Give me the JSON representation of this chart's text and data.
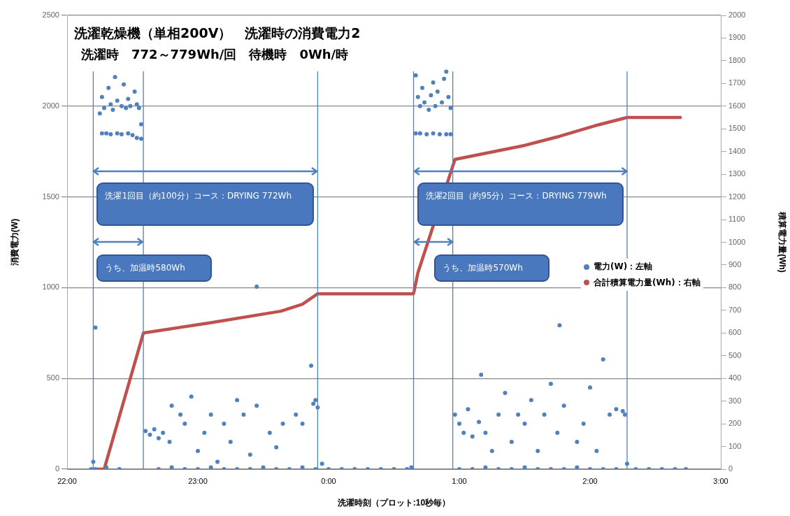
{
  "chart_data": {
    "type": "scatter",
    "title": "洗濯乾燥機（単相200V）　洗濯時の消費電力2",
    "subtitle": "洗濯時　772～779Wh/回　待機時　0Wh/時",
    "xlabel": "洗濯時刻（プロット:10秒毎）",
    "ylabel": "消費電力(W)",
    "y2label": "積算電力量(Wh)",
    "xlim": [
      "2000-01-01T22:00",
      "2000-01-02T03:00"
    ],
    "xticks": [
      {
        "value": "2000-01-01T22:00",
        "label": "22:00"
      },
      {
        "value": "2000-01-01T23:00",
        "label": "23:00"
      },
      {
        "value": "2000-01-02T00:00",
        "label": "0:00"
      },
      {
        "value": "2000-01-02T01:00",
        "label": "1:00"
      },
      {
        "value": "2000-01-02T02:00",
        "label": "2:00"
      },
      {
        "value": "2000-01-02T03:00",
        "label": "3:00"
      }
    ],
    "ylim": [
      0,
      2500
    ],
    "yticks": [
      0,
      500,
      1000,
      1500,
      2000,
      2500
    ],
    "y2lim": [
      0,
      2000
    ],
    "y2ticks": [
      0,
      100,
      200,
      300,
      400,
      500,
      600,
      700,
      800,
      900,
      1000,
      1100,
      1200,
      1300,
      1400,
      1500,
      1600,
      1700,
      1800,
      1900,
      2000
    ],
    "grid": "y",
    "legend": "right",
    "series": [
      {
        "type": "scatter",
        "name": "電力(W)：左軸",
        "color": "#4f81bd",
        "marker": "circle",
        "x": [
          "2000-01-01T22:11",
          "2000-01-01T22:12",
          "2000-01-01T22:13",
          "2000-01-01T22:13",
          "2000-01-01T22:18",
          "2000-01-01T22:24",
          "2000-01-01T22:16",
          "2000-01-01T22:18",
          "2000-01-01T22:20",
          "2000-01-01T22:23",
          "2000-01-01T22:25",
          "2000-01-01T22:28",
          "2000-01-01T22:30",
          "2000-01-01T22:32",
          "2000-01-01T22:34",
          "2000-01-01T22:15",
          "2000-01-01T22:16",
          "2000-01-01T22:17",
          "2000-01-01T22:19",
          "2000-01-01T22:20",
          "2000-01-01T22:21",
          "2000-01-01T22:22",
          "2000-01-01T22:23",
          "2000-01-01T22:25",
          "2000-01-01T22:26",
          "2000-01-01T22:27",
          "2000-01-01T22:28",
          "2000-01-01T22:29",
          "2000-01-01T22:31",
          "2000-01-01T22:32",
          "2000-01-01T22:33",
          "2000-01-01T22:34",
          "2000-01-01T22:36",
          "2000-01-01T22:38",
          "2000-01-01T22:40",
          "2000-01-01T22:42",
          "2000-01-01T22:44",
          "2000-01-01T22:47",
          "2000-01-01T22:48",
          "2000-01-01T22:52",
          "2000-01-01T22:54",
          "2000-01-01T22:57",
          "2000-01-01T23:00",
          "2000-01-01T23:03",
          "2000-01-01T23:06",
          "2000-01-01T23:09",
          "2000-01-01T23:12",
          "2000-01-01T23:15",
          "2000-01-01T23:18",
          "2000-01-01T23:21",
          "2000-01-01T23:24",
          "2000-01-01T23:27",
          "2000-01-01T23:27",
          "2000-01-01T23:33",
          "2000-01-01T23:36",
          "2000-01-01T23:39",
          "2000-01-01T23:45",
          "2000-01-01T23:48",
          "2000-01-01T23:52",
          "2000-01-01T23:53",
          "2000-01-01T23:54",
          "2000-01-01T23:55",
          "2000-01-01T22:42",
          "2000-01-01T22:48",
          "2000-01-01T22:54",
          "2000-01-01T23:00",
          "2000-01-01T23:06",
          "2000-01-01T23:12",
          "2000-01-01T23:18",
          "2000-01-01T23:24",
          "2000-01-01T23:30",
          "2000-01-01T23:36",
          "2000-01-01T23:42",
          "2000-01-01T23:48",
          "2000-01-01T23:54",
          "2000-01-01T23:57",
          "2000-01-02T00:00",
          "2000-01-02T00:06",
          "2000-01-02T00:12",
          "2000-01-02T00:18",
          "2000-01-02T00:24",
          "2000-01-02T00:30",
          "2000-01-02T00:36",
          "2000-01-02T00:38",
          "2000-01-02T00:40",
          "2000-01-02T00:42",
          "2000-01-02T00:45",
          "2000-01-02T00:48",
          "2000-01-02T00:51",
          "2000-01-02T00:54",
          "2000-01-02T00:56",
          "2000-01-02T00:40",
          "2000-01-02T00:41",
          "2000-01-02T00:42",
          "2000-01-02T00:43",
          "2000-01-02T00:44",
          "2000-01-02T00:46",
          "2000-01-02T00:47",
          "2000-01-02T00:48",
          "2000-01-02T00:49",
          "2000-01-02T00:50",
          "2000-01-02T00:52",
          "2000-01-02T00:53",
          "2000-01-02T00:54",
          "2000-01-02T00:55",
          "2000-01-02T00:56",
          "2000-01-02T00:58",
          "2000-01-02T01:00",
          "2000-01-02T01:02",
          "2000-01-02T01:04",
          "2000-01-02T01:06",
          "2000-01-02T01:09",
          "2000-01-02T01:10",
          "2000-01-02T01:12",
          "2000-01-02T01:15",
          "2000-01-02T01:18",
          "2000-01-02T01:21",
          "2000-01-02T01:24",
          "2000-01-02T01:27",
          "2000-01-02T01:30",
          "2000-01-02T01:33",
          "2000-01-02T01:36",
          "2000-01-02T01:39",
          "2000-01-02T01:42",
          "2000-01-02T01:45",
          "2000-01-02T01:46",
          "2000-01-02T01:48",
          "2000-01-02T01:54",
          "2000-01-02T01:57",
          "2000-01-02T02:00",
          "2000-01-02T02:03",
          "2000-01-02T02:06",
          "2000-01-02T02:09",
          "2000-01-02T02:12",
          "2000-01-02T02:15",
          "2000-01-02T02:16",
          "2000-01-02T01:00",
          "2000-01-02T01:06",
          "2000-01-02T01:12",
          "2000-01-02T01:18",
          "2000-01-02T01:24",
          "2000-01-02T01:30",
          "2000-01-02T01:36",
          "2000-01-02T01:42",
          "2000-01-02T01:48",
          "2000-01-02T01:54",
          "2000-01-02T02:00",
          "2000-01-02T02:06",
          "2000-01-02T02:12",
          "2000-01-02T02:17",
          "2000-01-02T02:21",
          "2000-01-02T02:27",
          "2000-01-02T02:33",
          "2000-01-02T02:39",
          "2000-01-02T02:44"
        ],
        "values": [
          0,
          40,
          780,
          0,
          10,
          0,
          1850,
          1850,
          1845,
          1850,
          1845,
          1850,
          1840,
          1825,
          1820,
          1960,
          2050,
          1990,
          2100,
          2010,
          1980,
          2160,
          2030,
          2000,
          2120,
          1990,
          2040,
          2000,
          2080,
          2010,
          1990,
          1900,
          210,
          190,
          220,
          170,
          200,
          150,
          350,
          300,
          250,
          400,
          100,
          200,
          300,
          40,
          250,
          150,
          380,
          300,
          80,
          1005,
          350,
          200,
          120,
          250,
          300,
          250,
          570,
          360,
          380,
          340,
          0,
          10,
          0,
          0,
          10,
          0,
          0,
          0,
          10,
          0,
          0,
          10,
          0,
          30,
          0,
          0,
          0,
          0,
          0,
          0,
          0,
          10,
          1850,
          1850,
          1845,
          1850,
          1845,
          1845,
          1845,
          2170,
          2050,
          2000,
          2100,
          2020,
          1980,
          2060,
          2130,
          2000,
          2080,
          2020,
          2150,
          2190,
          2050,
          1990,
          300,
          250,
          200,
          330,
          180,
          260,
          520,
          200,
          100,
          300,
          420,
          150,
          300,
          250,
          380,
          100,
          300,
          470,
          200,
          793,
          350,
          150,
          250,
          450,
          100,
          605,
          300,
          330,
          320,
          300,
          0,
          0,
          10,
          0,
          0,
          10,
          0,
          0,
          0,
          10,
          0,
          0,
          0,
          30,
          0,
          0,
          0,
          0,
          0
        ]
      },
      {
        "type": "line",
        "name": "合計積算電力量(Wh)：右軸",
        "color": "#c0504d",
        "marker": "none",
        "axis": "y2",
        "x": [
          "2000-01-01T22:13",
          "2000-01-01T22:17",
          "2000-01-01T22:35",
          "2000-01-01T23:05",
          "2000-01-01T23:38",
          "2000-01-01T23:48",
          "2000-01-01T23:55",
          "2000-01-02T00:39",
          "2000-01-02T00:41",
          "2000-01-02T00:58",
          "2000-01-02T01:14",
          "2000-01-02T01:30",
          "2000-01-02T01:46",
          "2000-01-02T02:02",
          "2000-01-02T02:17",
          "2000-01-02T02:42"
        ],
        "values": [
          0,
          0,
          600,
          644,
          696,
          727,
          773,
          773,
          866,
          1365,
          1396,
          1427,
          1467,
          1513,
          1550,
          1550
        ]
      }
    ],
    "ref_lines": [
      {
        "axis": "x",
        "value": "2000-01-01T22:12",
        "color": "#4f81bd"
      },
      {
        "axis": "x",
        "value": "2000-01-01T22:35",
        "color": "#4f81bd"
      },
      {
        "axis": "x",
        "value": "2000-01-01T23:55",
        "color": "#4f81bd"
      },
      {
        "axis": "x",
        "value": "2000-01-02T00:39",
        "color": "#4f81bd"
      },
      {
        "axis": "x",
        "value": "2000-01-02T00:57",
        "color": "#4f81bd"
      },
      {
        "axis": "x",
        "value": "2000-01-02T02:17",
        "color": "#4f81bd"
      }
    ],
    "annotations": [
      {
        "text": "洗濯1回目（約100分）コース：DRYING 772Wh",
        "x": "2000-01-01T22:12",
        "y": 1641
      },
      {
        "text": "うち、加温時580Wh",
        "x": "2000-01-01T22:12",
        "y": 1252
      },
      {
        "text": "洗濯2回目（約95分）コース：DRYING 779Wh",
        "x": "2000-01-02T00:39",
        "y": 1641
      },
      {
        "text": "うち、加温時570Wh",
        "x": "2000-01-02T00:47",
        "y": 1252
      }
    ]
  }
}
